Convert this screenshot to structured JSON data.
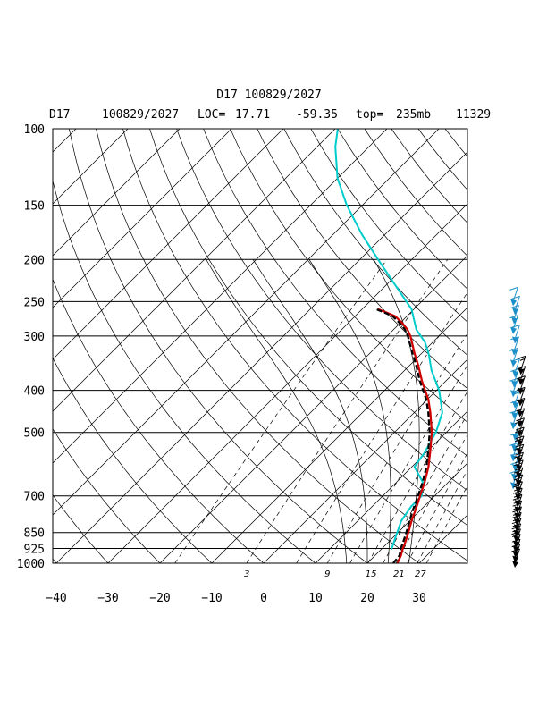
{
  "chart_data": {
    "type": "skew-t sounding",
    "title": "D17 100829/2027",
    "subtitle": {
      "station": "D17",
      "datetime": "100829/2027",
      "loc_label": "LOC=",
      "lat": "17.71",
      "lon": "-59.35",
      "top_label": "top=",
      "top": "235mb",
      "id": "11329"
    },
    "pressure_levels": [
      100,
      150,
      200,
      250,
      300,
      400,
      500,
      700,
      850,
      925,
      1000
    ],
    "pressure_labels": [
      "100",
      "150",
      "200",
      "250",
      "300",
      "400",
      "500",
      "700",
      "850",
      "925",
      "1000"
    ],
    "temperature_ticks": [
      -40,
      -30,
      -20,
      -10,
      0,
      10,
      20,
      30
    ],
    "temperature_labels": [
      "−40",
      "−30",
      "−20",
      "−10",
      "0",
      "10",
      "20",
      "30"
    ],
    "mixing_ratio_labels": [
      "3",
      "9",
      "15",
      "21",
      "27"
    ],
    "mixing_ratios": [
      3,
      9,
      15,
      21,
      27
    ],
    "xlim": [
      -40,
      40
    ],
    "ylim": [
      1000,
      100
    ],
    "colors": {
      "temperature": "#d00000",
      "dewpoint": "#000000",
      "upper_trace": "#00cccc",
      "wind_lower": "#000000",
      "wind_upper": "#1a8fc9",
      "grid": "#000000"
    },
    "series": [
      {
        "key": "temperature",
        "points": [
          [
            1000,
            25.8
          ],
          [
            960,
            25.0
          ],
          [
            925,
            24.0
          ],
          [
            900,
            23.4
          ],
          [
            850,
            22.0
          ],
          [
            800,
            20.4
          ],
          [
            750,
            18.9
          ],
          [
            700,
            17.2
          ],
          [
            650,
            15.4
          ],
          [
            600,
            13.2
          ],
          [
            550,
            10.4
          ],
          [
            500,
            7.2
          ],
          [
            450,
            3.1
          ],
          [
            420,
            0.2
          ],
          [
            400,
            -2.2
          ],
          [
            380,
            -4.7
          ],
          [
            350,
            -8.4
          ],
          [
            330,
            -11.2
          ],
          [
            300,
            -15.5
          ],
          [
            290,
            -17.3
          ],
          [
            280,
            -19.6
          ],
          [
            270,
            -22.3
          ],
          [
            265,
            -24.6
          ],
          [
            260,
            -27.0
          ]
        ]
      },
      {
        "key": "dewpoint",
        "points": [
          [
            1000,
            25.0
          ],
          [
            960,
            24.7
          ],
          [
            925,
            23.6
          ],
          [
            900,
            23.0
          ],
          [
            850,
            21.6
          ],
          [
            800,
            20.0
          ],
          [
            750,
            18.4
          ],
          [
            700,
            16.8
          ],
          [
            650,
            15.0
          ],
          [
            600,
            12.8
          ],
          [
            550,
            10.0
          ],
          [
            500,
            6.8
          ],
          [
            450,
            2.7
          ],
          [
            420,
            -0.2
          ],
          [
            400,
            -2.6
          ],
          [
            380,
            -5.1
          ],
          [
            350,
            -8.8
          ],
          [
            330,
            -11.6
          ],
          [
            300,
            -16.0
          ],
          [
            290,
            -17.8
          ],
          [
            280,
            -20.1
          ],
          [
            270,
            -22.8
          ],
          [
            265,
            -25.0
          ],
          [
            260,
            -27.4
          ]
        ]
      },
      {
        "key": "upper_trace",
        "points": [
          [
            930,
            22.0
          ],
          [
            870,
            20.4
          ],
          [
            800,
            18.4
          ],
          [
            740,
            17.5
          ],
          [
            700,
            17.5
          ],
          [
            650,
            15.0
          ],
          [
            600,
            10.5
          ],
          [
            560,
            9.8
          ],
          [
            500,
            8.0
          ],
          [
            450,
            5.4
          ],
          [
            400,
            0.5
          ],
          [
            360,
            -4.8
          ],
          [
            330,
            -8.5
          ],
          [
            310,
            -11.5
          ],
          [
            290,
            -15.6
          ],
          [
            260,
            -20.5
          ],
          [
            230,
            -28.0
          ],
          [
            200,
            -36.5
          ],
          [
            175,
            -44.5
          ],
          [
            150,
            -53.0
          ],
          [
            130,
            -60.0
          ],
          [
            110,
            -66.5
          ],
          [
            100,
            -69.5
          ]
        ]
      }
    ],
    "wind_profile": {
      "lower": {
        "p": [
          1000,
          975,
          950,
          925,
          900,
          875,
          850,
          825,
          800,
          775,
          750,
          725,
          700,
          675,
          650,
          625,
          600,
          575,
          550,
          525,
          500,
          475,
          450,
          425,
          400,
          380,
          360
        ],
        "speed_kt": [
          15,
          15,
          15,
          15,
          20,
          20,
          20,
          20,
          20,
          20,
          25,
          25,
          25,
          25,
          25,
          25,
          25,
          25,
          25,
          20,
          20,
          15,
          15,
          15,
          15,
          15,
          15
        ]
      },
      "upper": {
        "p": [
          660,
          630,
          600,
          570,
          540,
          510,
          480,
          455,
          430,
          405,
          385,
          365,
          345,
          325,
          305,
          290,
          275,
          262,
          250
        ],
        "speed_kt": [
          10,
          10,
          10,
          10,
          10,
          10,
          15,
          15,
          15,
          15,
          15,
          10,
          10,
          10,
          10,
          10,
          10,
          10,
          10
        ]
      }
    }
  }
}
